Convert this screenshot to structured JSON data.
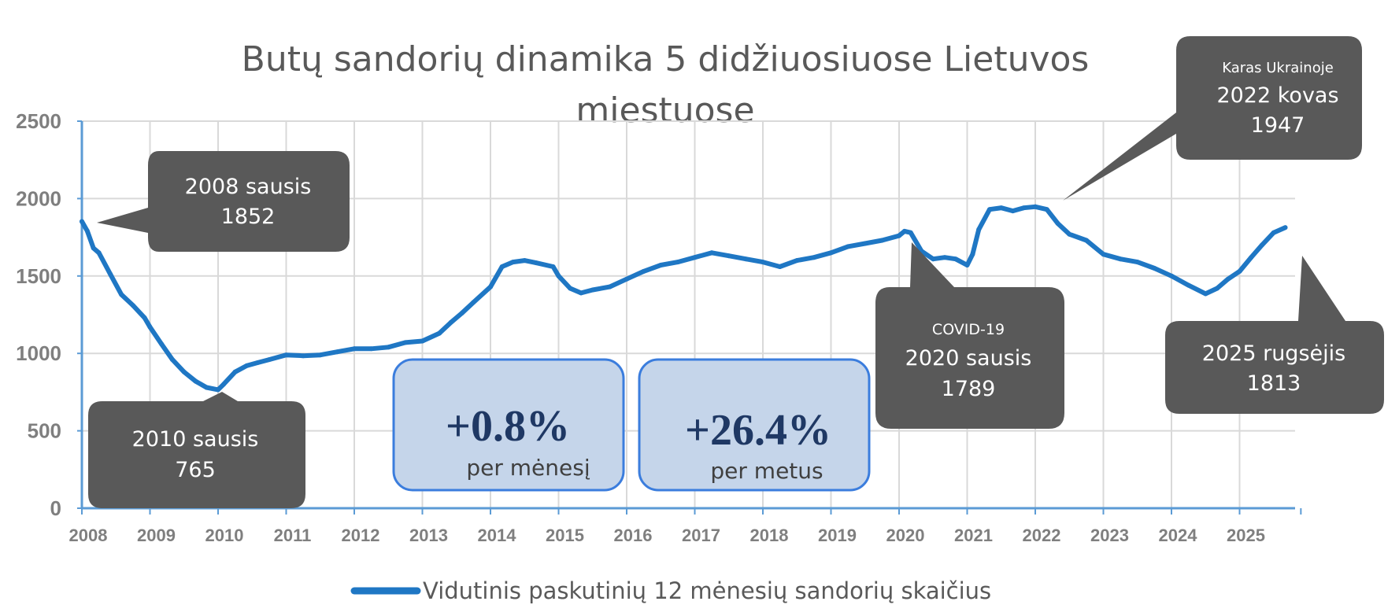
{
  "chart_data": {
    "type": "line",
    "title": "Butų sandorių dinamika 5 didžiuosiuose Lietuvos miestuose",
    "title_lines": [
      "Butų sandorių dinamika 5 didžiuosiuose  Lietuvos",
      "miestuose"
    ],
    "xlabel": "",
    "ylabel": "",
    "xlim": [
      2008,
      2025.9
    ],
    "ylim": [
      0,
      2500
    ],
    "grid": true,
    "legend_position": "bottom",
    "x_ticks": [
      "2008",
      "2009",
      "2010",
      "2011",
      "2012",
      "2013",
      "2014",
      "2015",
      "2016",
      "2017",
      "2018",
      "2019",
      "2020",
      "2021",
      "2022",
      "2023",
      "2024",
      "2025"
    ],
    "y_ticks": [
      "0",
      "500",
      "1000",
      "1500",
      "2000",
      "2500"
    ],
    "colors": {
      "line": "#1f77c4",
      "grid": "#d9d9d9",
      "axis": "#5b9bd5",
      "callout": "#595959",
      "stat_fill": "#c5d5ea",
      "stat_border": "#3b7ddd"
    },
    "series": [
      {
        "name": "Vidutinis paskutinių 12 mėnesių sandorių skaičius",
        "x": [
          2008.0,
          2008.08,
          2008.17,
          2008.25,
          2008.42,
          2008.58,
          2008.75,
          2008.92,
          2009.0,
          2009.17,
          2009.33,
          2009.5,
          2009.67,
          2009.83,
          2010.0,
          2010.08,
          2010.25,
          2010.42,
          2010.58,
          2010.75,
          2011.0,
          2011.25,
          2011.5,
          2011.75,
          2012.0,
          2012.25,
          2012.5,
          2012.75,
          2013.0,
          2013.25,
          2013.42,
          2013.58,
          2013.75,
          2014.0,
          2014.17,
          2014.33,
          2014.5,
          2014.67,
          2014.92,
          2015.0,
          2015.17,
          2015.33,
          2015.5,
          2015.75,
          2016.0,
          2016.25,
          2016.5,
          2016.75,
          2017.0,
          2017.25,
          2017.5,
          2017.75,
          2018.0,
          2018.25,
          2018.5,
          2018.75,
          2019.0,
          2019.25,
          2019.5,
          2019.75,
          2020.0,
          2020.08,
          2020.17,
          2020.33,
          2020.5,
          2020.67,
          2020.83,
          2021.0,
          2021.08,
          2021.17,
          2021.33,
          2021.5,
          2021.67,
          2021.83,
          2022.0,
          2022.17,
          2022.33,
          2022.5,
          2022.75,
          2023.0,
          2023.25,
          2023.5,
          2023.75,
          2024.0,
          2024.25,
          2024.5,
          2024.67,
          2024.83,
          2025.0,
          2025.17,
          2025.33,
          2025.5,
          2025.67
        ],
        "values": [
          1852,
          1790,
          1680,
          1650,
          1510,
          1380,
          1310,
          1230,
          1170,
          1060,
          960,
          880,
          820,
          780,
          765,
          800,
          880,
          920,
          940,
          960,
          990,
          985,
          990,
          1010,
          1030,
          1030,
          1040,
          1070,
          1080,
          1130,
          1200,
          1260,
          1330,
          1430,
          1560,
          1590,
          1600,
          1585,
          1560,
          1500,
          1420,
          1390,
          1410,
          1430,
          1480,
          1530,
          1570,
          1590,
          1620,
          1650,
          1630,
          1610,
          1590,
          1560,
          1600,
          1620,
          1650,
          1690,
          1710,
          1730,
          1760,
          1789,
          1780,
          1660,
          1610,
          1620,
          1610,
          1570,
          1640,
          1800,
          1930,
          1940,
          1920,
          1940,
          1947,
          1930,
          1840,
          1770,
          1730,
          1640,
          1610,
          1590,
          1550,
          1500,
          1440,
          1385,
          1420,
          1480,
          1530,
          1620,
          1700,
          1780,
          1813
        ]
      }
    ],
    "callouts": [
      {
        "lines": [
          "2008 sausis",
          "1852"
        ]
      },
      {
        "lines": [
          "2010 sausis",
          "765"
        ]
      },
      {
        "lines": [
          "COVID-19",
          "2020 sausis",
          "1789"
        ]
      },
      {
        "lines": [
          "Karas Ukrainoje",
          "2022 kovas",
          "1947"
        ]
      },
      {
        "lines": [
          "2025 rugsėjis",
          "1813"
        ]
      }
    ],
    "stat_boxes": [
      {
        "value": "+0.8%",
        "label": "per mėnesį"
      },
      {
        "value": "+26.4%",
        "label": "per metus"
      }
    ]
  }
}
